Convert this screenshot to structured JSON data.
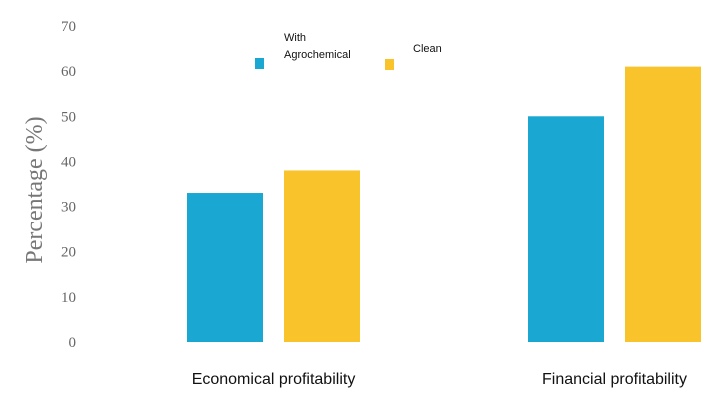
{
  "chart_data": {
    "type": "bar",
    "title": "",
    "xlabel": "",
    "ylabel": "Percentage (%)",
    "ylim": [
      0,
      70
    ],
    "yticks": [
      "0",
      "10",
      "20",
      "30",
      "40",
      "50",
      "60",
      "70"
    ],
    "grid": false,
    "legend_position": "top-center",
    "categories": [
      "Economical profitability",
      "Financial profitability"
    ],
    "series": [
      {
        "name": "With Agrochemical",
        "name_lines": [
          "With",
          "Agrochemical"
        ],
        "color": "#1aa7d1",
        "values": [
          33,
          50
        ]
      },
      {
        "name": "Clean",
        "name_lines": [
          "Clean"
        ],
        "color": "#f9c42b",
        "values": [
          38,
          61
        ]
      }
    ]
  }
}
